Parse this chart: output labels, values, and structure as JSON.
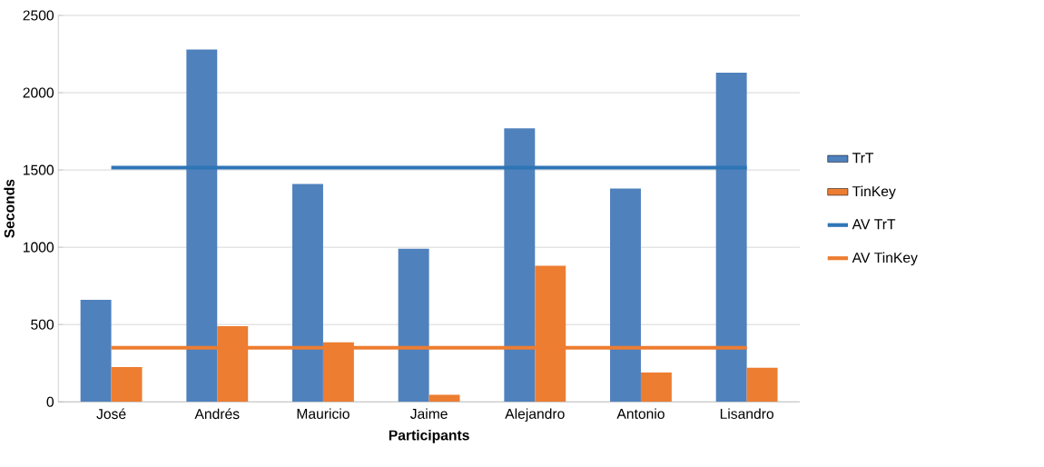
{
  "chart_data": {
    "type": "bar",
    "xlabel": "Participants",
    "ylabel": "Seconds",
    "categories": [
      "José",
      "Andrés",
      "Mauricio",
      "Jaime",
      "Alejandro",
      "Antonio",
      "Lisandro"
    ],
    "series": [
      {
        "name": "TrT",
        "color": "#4f81bd",
        "values": [
          660,
          2280,
          1410,
          990,
          1770,
          1380,
          2130
        ]
      },
      {
        "name": "TinKey",
        "color": "#ed7d31",
        "values": [
          225,
          490,
          385,
          45,
          880,
          190,
          220
        ]
      },
      {
        "name": "AV TrT",
        "type": "line",
        "color": "#2e75b6",
        "values": [
          1515,
          1515,
          1515,
          1515,
          1515,
          1515,
          1515
        ]
      },
      {
        "name": "AV TinKey",
        "type": "line",
        "color": "#ed7d31",
        "values": [
          350,
          350,
          350,
          350,
          350,
          350,
          350
        ]
      }
    ],
    "ylim": [
      0,
      2500
    ],
    "yticks": [
      0,
      500,
      1000,
      1500,
      2000,
      2500
    ],
    "grid": "y",
    "legend": "right"
  }
}
